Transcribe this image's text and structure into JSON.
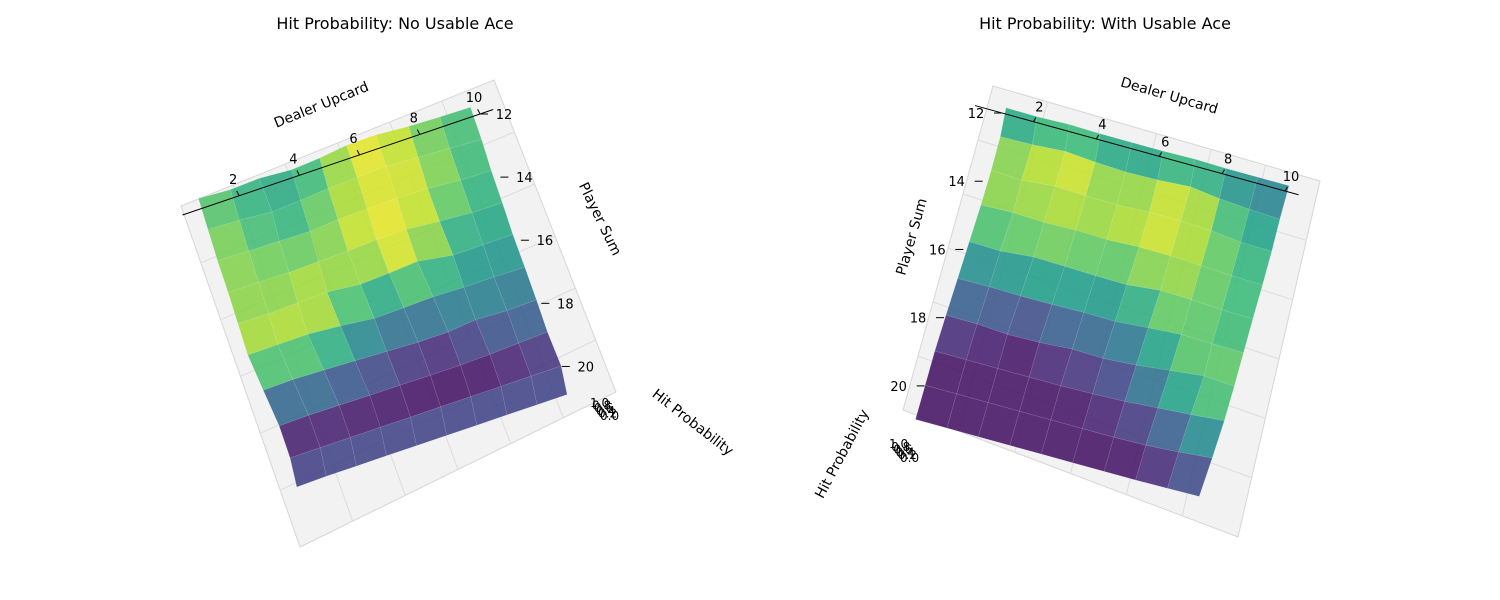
{
  "chart_data": [
    {
      "type": "surface3d",
      "title": "Hit Probability: No Usable Ace",
      "xlabel": "Dealer Upcard",
      "ylabel": "Player Sum",
      "zlabel": "Hit Probability",
      "x": [
        1,
        2,
        3,
        4,
        5,
        6,
        7,
        8,
        9,
        10
      ],
      "y": [
        12,
        13,
        14,
        15,
        16,
        17,
        18,
        19,
        20,
        21
      ],
      "x_ticks": [
        2,
        4,
        6,
        8,
        10
      ],
      "y_ticks": [
        12,
        14,
        16,
        18,
        20
      ],
      "z_ticks": [
        "0.0",
        "0.2",
        "0.4",
        "0.6",
        "0.8",
        "1.0"
      ],
      "zlim": [
        0,
        1
      ],
      "colormap": "viridis",
      "z": [
        [
          0.75,
          0.62,
          0.72,
          0.55,
          0.7,
          0.95,
          0.98,
          0.8,
          0.72,
          0.68
        ],
        [
          0.8,
          0.72,
          0.52,
          0.65,
          0.82,
          0.9,
          1.0,
          0.85,
          0.75,
          0.62
        ],
        [
          0.85,
          0.78,
          0.75,
          0.7,
          0.85,
          0.92,
          0.95,
          0.9,
          0.7,
          0.65
        ],
        [
          0.82,
          0.8,
          0.78,
          0.82,
          0.88,
          0.98,
          1.0,
          0.78,
          0.62,
          0.6
        ],
        [
          0.85,
          0.82,
          0.88,
          0.95,
          0.7,
          0.8,
          0.95,
          0.55,
          0.55,
          0.58
        ],
        [
          0.88,
          0.9,
          0.9,
          0.72,
          0.45,
          0.5,
          0.55,
          0.5,
          0.5,
          0.45
        ],
        [
          0.5,
          0.55,
          0.48,
          0.4,
          0.3,
          0.2,
          0.2,
          0.4,
          0.3,
          0.35
        ],
        [
          0.1,
          0.15,
          0.12,
          0.08,
          0.08,
          0.05,
          0.05,
          0.1,
          0.2,
          0.3
        ],
        [
          0.05,
          0.05,
          0.05,
          0.05,
          0.05,
          0.05,
          0.05,
          0.05,
          0.05,
          0.05
        ],
        [
          0.3,
          0.35,
          0.35,
          0.35,
          0.35,
          0.35,
          0.35,
          0.35,
          0.35,
          0.35
        ]
      ]
    },
    {
      "type": "surface3d",
      "title": "Hit Probability: With Usable Ace",
      "xlabel": "Dealer Upcard",
      "ylabel": "Player Sum",
      "zlabel": "Hit Probability",
      "x": [
        1,
        2,
        3,
        4,
        5,
        6,
        7,
        8,
        9,
        10
      ],
      "y": [
        12,
        13,
        14,
        15,
        16,
        17,
        18,
        19,
        20,
        21
      ],
      "x_ticks": [
        2,
        4,
        6,
        8,
        10
      ],
      "y_ticks": [
        12,
        14,
        16,
        18,
        20
      ],
      "z_ticks": [
        "0.0",
        "0.2",
        "0.4",
        "0.6",
        "0.8",
        "1.0"
      ],
      "zlim": [
        0,
        1
      ],
      "colormap": "viridis",
      "z": [
        [
          0.4,
          0.38,
          0.45,
          0.4,
          0.4,
          0.4,
          0.45,
          0.4,
          0.4,
          0.4
        ],
        [
          0.8,
          0.85,
          1.0,
          0.85,
          0.75,
          0.8,
          0.95,
          0.7,
          0.55,
          0.45
        ],
        [
          0.85,
          0.75,
          0.95,
          0.88,
          0.85,
          0.95,
          0.95,
          0.85,
          0.65,
          0.6
        ],
        [
          0.8,
          0.88,
          0.8,
          0.85,
          0.8,
          0.9,
          0.88,
          0.8,
          0.7,
          0.65
        ],
        [
          0.6,
          0.55,
          0.75,
          0.7,
          0.65,
          0.62,
          0.85,
          0.8,
          0.7,
          0.65
        ],
        [
          0.4,
          0.42,
          0.38,
          0.4,
          0.45,
          0.42,
          0.6,
          0.75,
          0.7,
          0.68
        ],
        [
          0.2,
          0.18,
          0.05,
          0.1,
          0.25,
          0.2,
          0.35,
          0.6,
          0.85,
          0.72
        ],
        [
          0.05,
          0.05,
          0.05,
          0.05,
          0.05,
          0.1,
          0.18,
          0.35,
          0.5,
          0.7
        ],
        [
          0.05,
          0.05,
          0.05,
          0.05,
          0.05,
          0.05,
          0.05,
          0.1,
          0.25,
          0.45
        ],
        [
          0.05,
          0.05,
          0.05,
          0.05,
          0.05,
          0.05,
          0.05,
          0.05,
          0.08,
          0.12
        ]
      ]
    }
  ]
}
